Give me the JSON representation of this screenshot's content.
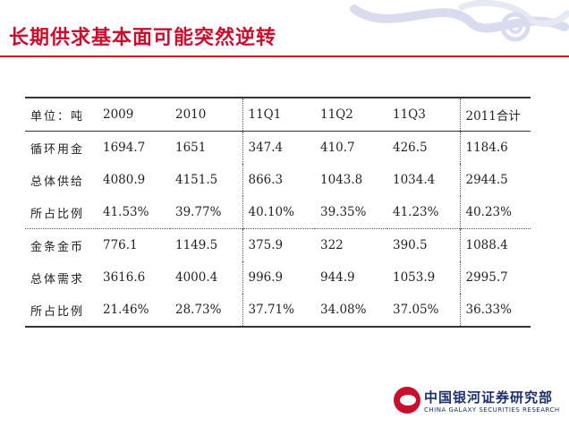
{
  "title": "长期供求基本面可能突然逆转",
  "table": {
    "header": [
      "单位：吨",
      "2009",
      "2010",
      "11Q1",
      "11Q2",
      "11Q3",
      "2011合计"
    ],
    "rows": [
      [
        "循环用金",
        "1694.7",
        "1651",
        "347.4",
        "410.7",
        "426.5",
        "1184.6"
      ],
      [
        "总体供给",
        "4080.9",
        "4151.5",
        "866.3",
        "1043.8",
        "1034.4",
        "2944.5"
      ],
      [
        "所占比例",
        "41.53%",
        "39.77%",
        "40.10%",
        "39.35%",
        "41.23%",
        "40.23%"
      ],
      [
        "金条金币",
        "776.1",
        "1149.5",
        "375.9",
        "322",
        "390.5",
        "1088.4"
      ],
      [
        "总体需求",
        "3616.6",
        "4000.4",
        "996.9",
        "944.9",
        "1053.9",
        "2995.7"
      ],
      [
        "所占比例",
        "21.46%",
        "28.73%",
        "37.71%",
        "34.08%",
        "37.05%",
        "36.33%"
      ]
    ]
  },
  "logo": {
    "cn": "中国银河证券研究部",
    "en": "CHINA GALAXY SECURITIES RESEARCH"
  },
  "colors": {
    "title": "#c8102e",
    "logo_text": "#1c2f6b"
  }
}
